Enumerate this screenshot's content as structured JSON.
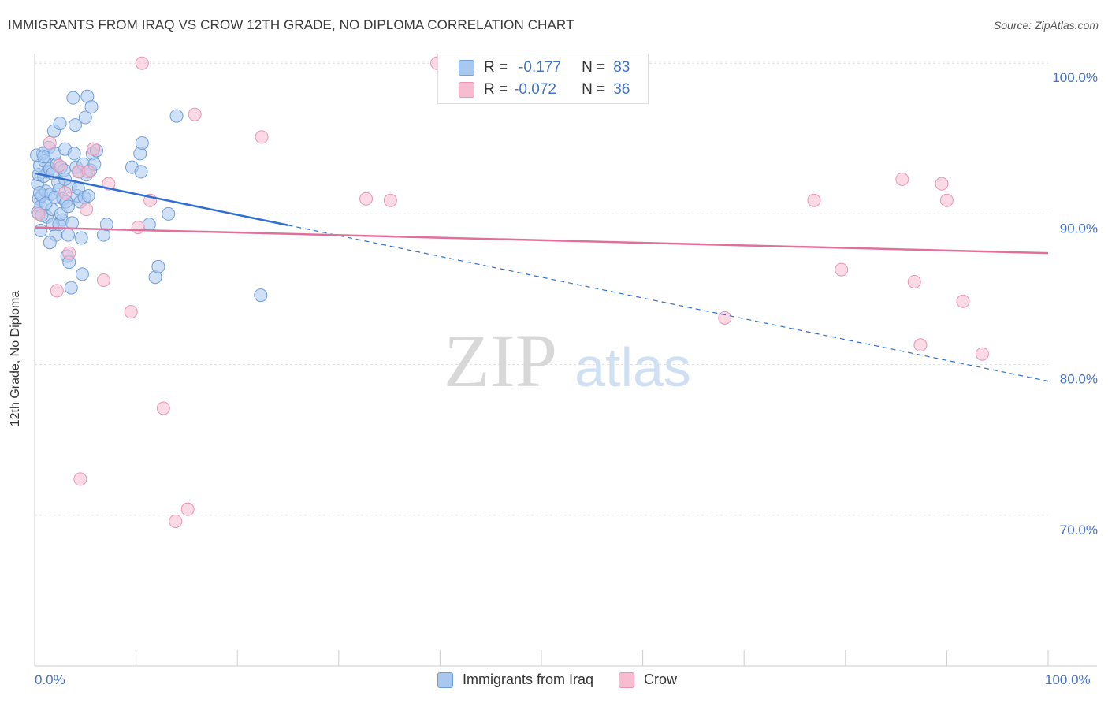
{
  "header": {
    "title": "IMMIGRANTS FROM IRAQ VS CROW 12TH GRADE, NO DIPLOMA CORRELATION CHART",
    "source": "Source: ZipAtlas.com"
  },
  "watermark": {
    "zip": "ZIP",
    "atlas": "atlas"
  },
  "legend": {
    "rows": [
      {
        "r_label": "R =",
        "r_value": "-0.177",
        "n_label": "N =",
        "n_value": "83"
      },
      {
        "r_label": "R =",
        "r_value": "-0.072",
        "n_label": "N =",
        "n_value": "36"
      }
    ]
  },
  "bottom_legend": {
    "items": [
      "Immigrants from Iraq",
      "Crow"
    ]
  },
  "colors": {
    "series1_fill": "#a9c8f0",
    "series1_stroke": "#6f9fd8",
    "series1_line": "#2e6fd1",
    "series2_fill": "#f7bcd0",
    "series2_stroke": "#e895b2",
    "series2_line": "#e0709a",
    "axis_text": "#4472c4",
    "grid": "#dddddd"
  },
  "chart_data": {
    "type": "scatter",
    "title": "IMMIGRANTS FROM IRAQ VS CROW 12TH GRADE, NO DIPLOMA CORRELATION CHART",
    "xlabel": "",
    "ylabel": "12th Grade, No Diploma",
    "xlim": [
      0,
      100
    ],
    "ylim": [
      60,
      101.5
    ],
    "x_tick_labels": [
      "0.0%",
      "100.0%"
    ],
    "y_ticks": [
      70,
      80,
      90,
      100
    ],
    "y_tick_labels": [
      "70.0%",
      "80.0%",
      "90.0%",
      "100.0%"
    ],
    "grid": true,
    "legend_position": "top-center",
    "series": [
      {
        "name": "Immigrants from Iraq",
        "points": [
          [
            0.3,
            92.0
          ],
          [
            0.4,
            91.0
          ],
          [
            0.5,
            93.2
          ],
          [
            0.6,
            90.5
          ],
          [
            0.7,
            91.2
          ],
          [
            0.8,
            94.0
          ],
          [
            0.9,
            92.5
          ],
          [
            1.0,
            93.5
          ],
          [
            1.1,
            91.5
          ],
          [
            1.2,
            89.8
          ],
          [
            1.3,
            92.8
          ],
          [
            1.4,
            94.4
          ],
          [
            1.5,
            93.0
          ],
          [
            1.6,
            91.3
          ],
          [
            1.7,
            90.3
          ],
          [
            1.8,
            92.7
          ],
          [
            1.9,
            95.5
          ],
          [
            2.0,
            94.0
          ],
          [
            2.1,
            88.6
          ],
          [
            2.2,
            93.3
          ],
          [
            2.3,
            92.1
          ],
          [
            2.4,
            91.6
          ],
          [
            2.5,
            96.0
          ],
          [
            2.6,
            93.1
          ],
          [
            2.7,
            89.6
          ],
          [
            2.8,
            91.0
          ],
          [
            2.9,
            92.9
          ],
          [
            3.0,
            94.3
          ],
          [
            3.1,
            90.8
          ],
          [
            3.2,
            87.2
          ],
          [
            3.3,
            88.6
          ],
          [
            3.4,
            86.8
          ],
          [
            3.5,
            91.8
          ],
          [
            3.6,
            85.1
          ],
          [
            3.7,
            89.4
          ],
          [
            3.8,
            97.7
          ],
          [
            3.9,
            94.0
          ],
          [
            4.0,
            95.9
          ],
          [
            4.1,
            93.1
          ],
          [
            4.2,
            91.2
          ],
          [
            4.3,
            91.7
          ],
          [
            4.4,
            92.8
          ],
          [
            4.5,
            90.8
          ],
          [
            4.6,
            88.4
          ],
          [
            4.7,
            86.0
          ],
          [
            4.8,
            93.3
          ],
          [
            4.9,
            91.1
          ],
          [
            5.0,
            96.4
          ],
          [
            5.1,
            92.6
          ],
          [
            5.2,
            97.8
          ],
          [
            5.3,
            91.2
          ],
          [
            5.5,
            92.9
          ],
          [
            5.7,
            94.0
          ],
          [
            5.9,
            93.3
          ],
          [
            6.1,
            94.2
          ],
          [
            0.2,
            93.9
          ],
          [
            0.3,
            90.1
          ],
          [
            0.4,
            92.6
          ],
          [
            0.5,
            91.4
          ],
          [
            0.7,
            89.9
          ],
          [
            0.9,
            93.8
          ],
          [
            1.1,
            90.7
          ],
          [
            1.5,
            88.1
          ],
          [
            1.8,
            89.3
          ],
          [
            2.0,
            91.1
          ],
          [
            2.4,
            89.3
          ],
          [
            2.6,
            90.0
          ],
          [
            3.0,
            92.3
          ],
          [
            3.3,
            90.5
          ],
          [
            5.6,
            97.1
          ],
          [
            6.8,
            88.6
          ],
          [
            7.1,
            89.3
          ],
          [
            9.6,
            93.1
          ],
          [
            10.4,
            94.0
          ],
          [
            10.5,
            92.8
          ],
          [
            10.6,
            94.7
          ],
          [
            11.3,
            89.3
          ],
          [
            11.9,
            85.8
          ],
          [
            12.2,
            86.5
          ],
          [
            13.2,
            90.0
          ],
          [
            14.0,
            96.5
          ],
          [
            22.3,
            84.6
          ],
          [
            0.6,
            88.9
          ]
        ]
      },
      {
        "name": "Crow",
        "points": [
          [
            0.4,
            90.0
          ],
          [
            1.5,
            94.7
          ],
          [
            2.2,
            84.9
          ],
          [
            2.4,
            93.2
          ],
          [
            3.0,
            91.4
          ],
          [
            3.4,
            87.4
          ],
          [
            4.3,
            92.8
          ],
          [
            4.5,
            72.4
          ],
          [
            5.1,
            90.3
          ],
          [
            5.3,
            92.8
          ],
          [
            5.8,
            94.3
          ],
          [
            6.8,
            85.6
          ],
          [
            7.3,
            92.0
          ],
          [
            9.5,
            83.5
          ],
          [
            10.2,
            89.1
          ],
          [
            10.6,
            100.0
          ],
          [
            11.4,
            90.9
          ],
          [
            12.7,
            77.1
          ],
          [
            13.9,
            69.6
          ],
          [
            15.1,
            70.4
          ],
          [
            15.8,
            96.6
          ],
          [
            22.4,
            95.1
          ],
          [
            32.7,
            91.0
          ],
          [
            35.1,
            90.9
          ],
          [
            39.7,
            100.0
          ],
          [
            56.4,
            100.0
          ],
          [
            68.1,
            83.1
          ],
          [
            76.9,
            90.9
          ],
          [
            79.6,
            86.3
          ],
          [
            85.6,
            92.3
          ],
          [
            86.8,
            85.5
          ],
          [
            87.4,
            81.3
          ],
          [
            89.5,
            92.0
          ],
          [
            91.6,
            84.2
          ],
          [
            93.5,
            80.7
          ],
          [
            90.0,
            90.9
          ]
        ]
      }
    ],
    "trend_lines": [
      {
        "series": "Immigrants from Iraq",
        "x_start": 0,
        "y_start": 92.7,
        "x_solid_end": 25,
        "x_end": 100,
        "y_end": 78.9
      },
      {
        "series": "Crow",
        "x_start": 0,
        "y_start": 89.1,
        "x_end": 100,
        "y_end": 87.4
      }
    ]
  }
}
